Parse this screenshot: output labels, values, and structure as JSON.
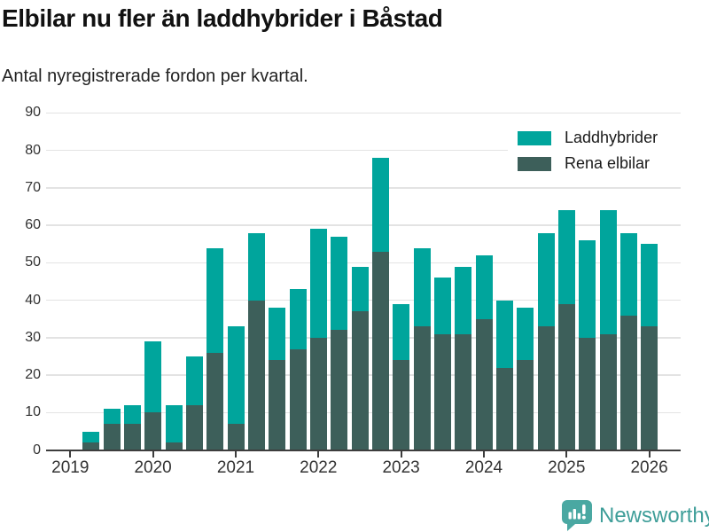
{
  "title": "Elbilar nu fler än laddhybrider i Båstad",
  "subtitle": "Antal nyregistrerade fordon per kvartal.",
  "legend": [
    {
      "label": "Laddhybrider",
      "color": "#00a59c"
    },
    {
      "label": "Rena elbilar",
      "color": "#3d5f5a"
    }
  ],
  "footer": {
    "brand": "Newsworthy",
    "logo_color": "#4aa8a2",
    "text_color": "#3f9e99"
  },
  "colors": {
    "laddhybrider": "#00a59c",
    "rena_elbilar": "#3d5f5a",
    "gridline": "#e3e3e3",
    "axis": "#3d3d3d",
    "tick_text": "#333333"
  },
  "chart_data": {
    "type": "bar",
    "stacked": true,
    "title": "Elbilar nu fler än laddhybrider i Båstad",
    "subtitle": "Antal nyregistrerade fordon per kvartal.",
    "xlabel": "",
    "ylabel": "",
    "ylim": [
      0,
      90
    ],
    "grid": true,
    "legend_position": "top-right",
    "y_ticks": [
      0,
      10,
      20,
      30,
      40,
      50,
      60,
      70,
      80,
      90
    ],
    "x_tick_labels": [
      "2019",
      "2020",
      "2021",
      "2022",
      "2023",
      "2024",
      "2025",
      "2026"
    ],
    "quarters": [
      "2019 Q2",
      "2019 Q3",
      "2019 Q4",
      "2020 Q1",
      "2020 Q2",
      "2020 Q3",
      "2020 Q4",
      "2021 Q1",
      "2021 Q2",
      "2021 Q3",
      "2021 Q4",
      "2022 Q1",
      "2022 Q2",
      "2022 Q3",
      "2022 Q4",
      "2023 Q1",
      "2023 Q2",
      "2023 Q3",
      "2023 Q4",
      "2024 Q1",
      "2024 Q2",
      "2024 Q3",
      "2024 Q4",
      "2025 Q1",
      "2025 Q2",
      "2025 Q3",
      "2025 Q4",
      "2026 Q1"
    ],
    "series": [
      {
        "name": "Rena elbilar",
        "color": "#3d5f5a",
        "values": [
          2,
          7,
          7,
          10,
          2,
          12,
          26,
          7,
          40,
          24,
          27,
          30,
          32,
          37,
          53,
          24,
          33,
          31,
          31,
          35,
          22,
          24,
          33,
          39,
          30,
          31,
          36,
          33
        ]
      },
      {
        "name": "Laddhybrider",
        "color": "#00a59c",
        "values": [
          3,
          4,
          5,
          19,
          10,
          13,
          28,
          26,
          18,
          14,
          16,
          29,
          25,
          12,
          25,
          15,
          21,
          15,
          18,
          17,
          18,
          14,
          25,
          25,
          26,
          33,
          22,
          22
        ]
      }
    ],
    "totals": [
      5,
      11,
      12,
      29,
      12,
      25,
      54,
      33,
      58,
      38,
      43,
      59,
      57,
      49,
      78,
      39,
      54,
      46,
      49,
      52,
      40,
      38,
      58,
      64,
      56,
      64,
      58,
      55
    ]
  }
}
